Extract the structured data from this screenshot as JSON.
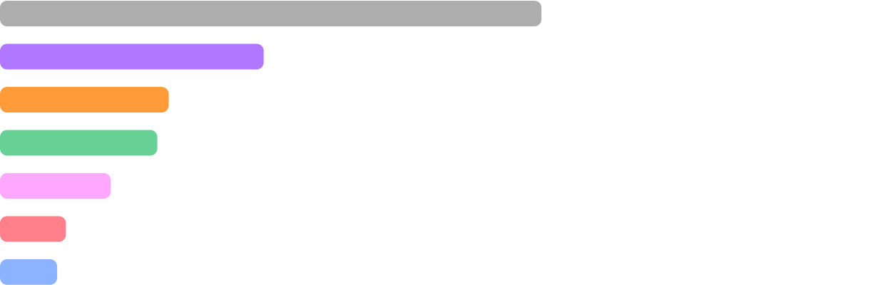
{
  "chart_data": {
    "type": "bar",
    "orientation": "horizontal",
    "title": "",
    "xlabel": "",
    "ylabel": "",
    "grid": false,
    "legend": "none",
    "xlim": [
      0,
      100
    ],
    "values": [
      61.6,
      30.0,
      19.2,
      17.9,
      12.6,
      7.5,
      6.5
    ],
    "colors": [
      "#adadad",
      "#b077ff",
      "#ff9b38",
      "#67d195",
      "#ffa8ff",
      "#ff7f8a",
      "#8bb3ff"
    ]
  }
}
